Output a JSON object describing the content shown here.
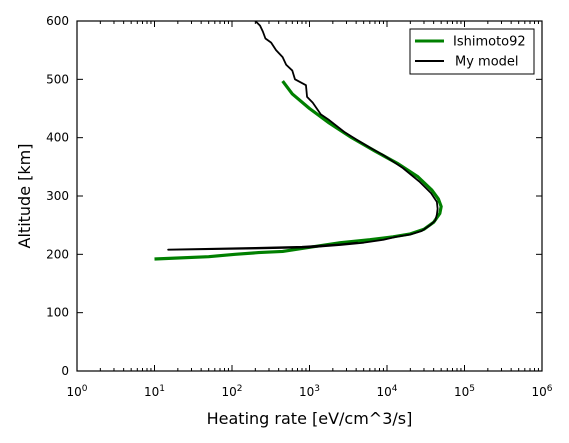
{
  "chart_data": {
    "type": "line",
    "title": "",
    "xlabel": "Heating rate [eV/cm^3/s]",
    "ylabel": "Altitude [km]",
    "xscale": "log",
    "xlim": [
      1,
      1000000
    ],
    "ylim": [
      0,
      600
    ],
    "x_ticks": [
      {
        "value": 1,
        "base": "10",
        "exp": "0"
      },
      {
        "value": 10,
        "base": "10",
        "exp": "1"
      },
      {
        "value": 100,
        "base": "10",
        "exp": "2"
      },
      {
        "value": 1000,
        "base": "10",
        "exp": "3"
      },
      {
        "value": 10000,
        "base": "10",
        "exp": "4"
      },
      {
        "value": 100000,
        "base": "10",
        "exp": "5"
      },
      {
        "value": 1000000,
        "base": "10",
        "exp": "6"
      }
    ],
    "y_ticks": [
      {
        "value": 0,
        "label": "0"
      },
      {
        "value": 100,
        "label": "100"
      },
      {
        "value": 200,
        "label": "200"
      },
      {
        "value": 300,
        "label": "300"
      },
      {
        "value": 400,
        "label": "400"
      },
      {
        "value": 500,
        "label": "500"
      },
      {
        "value": 600,
        "label": "600"
      }
    ],
    "grid": false,
    "legend_position": "top-right",
    "series": [
      {
        "name": "Ishimoto92",
        "color": "#008000",
        "points": [
          [
            10,
            192
          ],
          [
            50,
            196
          ],
          [
            110,
            200
          ],
          [
            220,
            203
          ],
          [
            450,
            205
          ],
          [
            1000,
            212
          ],
          [
            2500,
            220
          ],
          [
            6000,
            225
          ],
          [
            12000,
            230
          ],
          [
            20000,
            235
          ],
          [
            30000,
            243
          ],
          [
            40000,
            255
          ],
          [
            48000,
            270
          ],
          [
            50000,
            282
          ],
          [
            46000,
            295
          ],
          [
            38000,
            310
          ],
          [
            25000,
            333
          ],
          [
            14000,
            355
          ],
          [
            7000,
            377
          ],
          [
            3500,
            400
          ],
          [
            1800,
            425
          ],
          [
            1000,
            450
          ],
          [
            600,
            475
          ],
          [
            450,
            497
          ]
        ]
      },
      {
        "name": "My model",
        "color": "#000000",
        "points": [
          [
            4200,
            220
          ],
          [
            2500,
            217
          ],
          [
            1500,
            215
          ],
          [
            800,
            213
          ],
          [
            200,
            211
          ],
          [
            15,
            208
          ],
          [
            200,
            210
          ],
          [
            1000,
            212
          ],
          [
            2500,
            216
          ],
          [
            5000,
            220
          ],
          [
            9000,
            225
          ],
          [
            13000,
            230
          ],
          [
            20000,
            234
          ],
          [
            28000,
            240
          ],
          [
            36000,
            250
          ],
          [
            42000,
            258
          ],
          [
            44000,
            268
          ],
          [
            45000,
            278
          ],
          [
            44000,
            290
          ],
          [
            37000,
            305
          ],
          [
            26000,
            325
          ],
          [
            16000,
            348
          ],
          [
            9000,
            370
          ],
          [
            6000,
            383
          ],
          [
            4000,
            397
          ],
          [
            2800,
            410
          ],
          [
            1800,
            430
          ],
          [
            1400,
            440
          ],
          [
            1100,
            460
          ],
          [
            930,
            470
          ],
          [
            900,
            490
          ],
          [
            650,
            500
          ],
          [
            600,
            515
          ],
          [
            500,
            525
          ],
          [
            450,
            538
          ],
          [
            370,
            550
          ],
          [
            320,
            563
          ],
          [
            270,
            570
          ],
          [
            250,
            582
          ],
          [
            230,
            592
          ],
          [
            200,
            600
          ]
        ]
      }
    ]
  }
}
